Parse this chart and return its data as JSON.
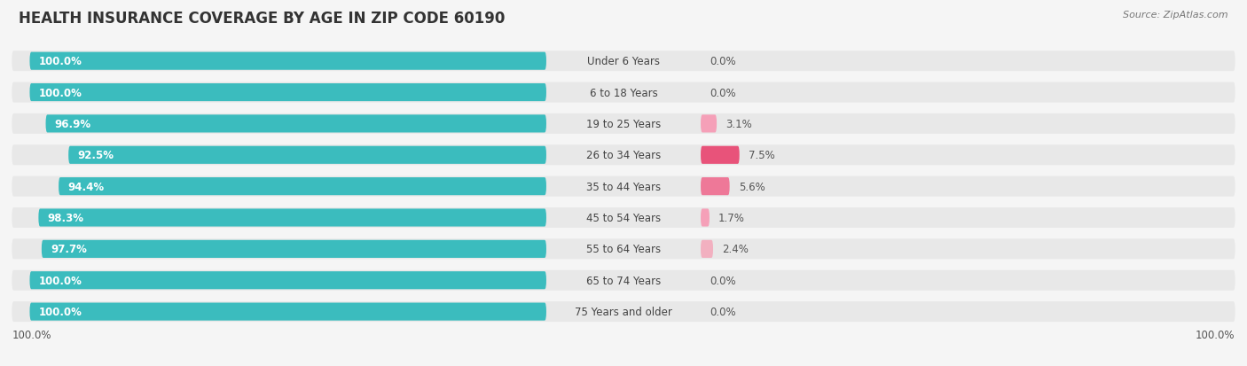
{
  "title": "HEALTH INSURANCE COVERAGE BY AGE IN ZIP CODE 60190",
  "source": "Source: ZipAtlas.com",
  "categories": [
    "Under 6 Years",
    "6 to 18 Years",
    "19 to 25 Years",
    "26 to 34 Years",
    "35 to 44 Years",
    "45 to 54 Years",
    "55 to 64 Years",
    "65 to 74 Years",
    "75 Years and older"
  ],
  "with_coverage": [
    100.0,
    100.0,
    96.9,
    92.5,
    94.4,
    98.3,
    97.7,
    100.0,
    100.0
  ],
  "without_coverage": [
    0.0,
    0.0,
    3.1,
    7.5,
    5.6,
    1.7,
    2.4,
    0.0,
    0.0
  ],
  "color_with": "#3bbcbe",
  "color_without": [
    "#f9c0d0",
    "#f9c0d0",
    "#f5a0b8",
    "#e8537a",
    "#ee7898",
    "#f5a0b8",
    "#f2b0c0",
    "#f9c0d0",
    "#f9c0d0"
  ],
  "bg_bar": "#e8e8e8",
  "bg_fig": "#f5f5f5",
  "title_fontsize": 12,
  "source_fontsize": 8,
  "bar_label_fontsize": 8.5,
  "cat_label_fontsize": 8.5
}
